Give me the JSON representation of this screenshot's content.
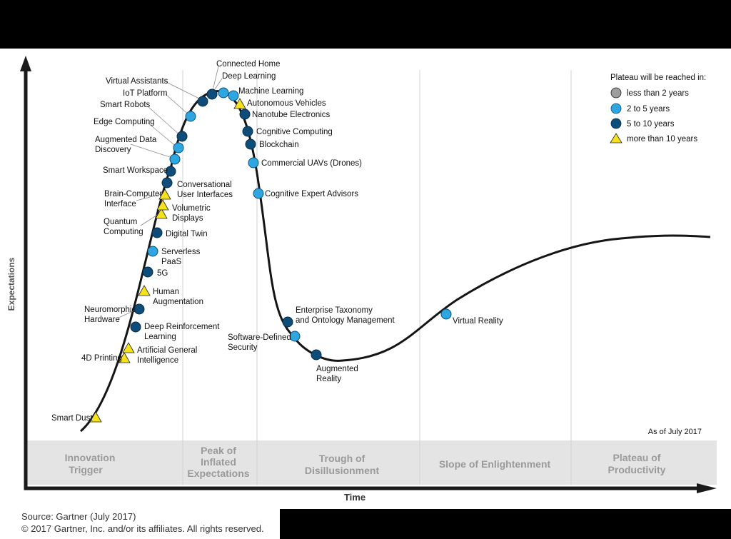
{
  "title": "",
  "axes": {
    "y_label": "Expectations",
    "x_label": "Time"
  },
  "as_of": "As of July 2017",
  "legend": {
    "title": "Plateau will be reached in:",
    "items": [
      {
        "label": "less than 2 years",
        "shape": "circle",
        "color": "#9e9e9e"
      },
      {
        "label": "2 to 5 years",
        "shape": "circle",
        "color": "#2ea6e0"
      },
      {
        "label": "5 to 10 years",
        "shape": "circle",
        "color": "#0e4d7a"
      },
      {
        "label": "more than 10 years",
        "shape": "triangle",
        "color": "#f5e21a"
      }
    ]
  },
  "phases": [
    {
      "lines": [
        "Innovation",
        "Trigger"
      ]
    },
    {
      "lines": [
        "Peak of",
        "Inflated",
        "Expectations"
      ]
    },
    {
      "lines": [
        "Trough of",
        "Disillusionment"
      ]
    },
    {
      "lines": [
        "Slope of Enlightenment"
      ]
    },
    {
      "lines": [
        "Plateau of",
        "Productivity"
      ]
    }
  ],
  "technologies": [
    {
      "name": "Smart Dust",
      "category": "more than 10 years"
    },
    {
      "name": "4D Printing",
      "category": "more than 10 years"
    },
    {
      "name": "Artificial General Intelligence",
      "category": "more than 10 years"
    },
    {
      "name": "Deep Reinforcement Learning",
      "category": "5 to 10 years"
    },
    {
      "name": "Neuromorphic Hardware",
      "category": "5 to 10 years"
    },
    {
      "name": "Human Augmentation",
      "category": "more than 10 years"
    },
    {
      "name": "5G",
      "category": "5 to 10 years"
    },
    {
      "name": "Serverless PaaS",
      "category": "2 to 5 years"
    },
    {
      "name": "Digital Twin",
      "category": "5 to 10 years"
    },
    {
      "name": "Quantum Computing",
      "category": "more than 10 years"
    },
    {
      "name": "Volumetric Displays",
      "category": "more than 10 years"
    },
    {
      "name": "Brain-Computer Interface",
      "category": "more than 10 years"
    },
    {
      "name": "Conversational User Interfaces",
      "category": "5 to 10 years"
    },
    {
      "name": "Smart Workspace",
      "category": "5 to 10 years"
    },
    {
      "name": "Augmented Data Discovery",
      "category": "2 to 5 years"
    },
    {
      "name": "Edge Computing",
      "category": "5 to 10 years"
    },
    {
      "name": "Smart Robots",
      "category": "2 to 5 years"
    },
    {
      "name": "IoT Platform",
      "category": "5 to 10 years"
    },
    {
      "name": "Virtual Assistants",
      "category": "5 to 10 years"
    },
    {
      "name": "Connected Home",
      "category": "5 to 10 years"
    },
    {
      "name": "Deep Learning",
      "category": "2 to 5 years"
    },
    {
      "name": "Machine Learning",
      "category": "2 to 5 years"
    },
    {
      "name": "Autonomous Vehicles",
      "category": "more than 10 years"
    },
    {
      "name": "Nanotube Electronics",
      "category": "5 to 10 years"
    },
    {
      "name": "Cognitive Computing",
      "category": "5 to 10 years"
    },
    {
      "name": "Blockchain",
      "category": "5 to 10 years"
    },
    {
      "name": "Commercial UAVs (Drones)",
      "category": "2 to 5 years"
    },
    {
      "name": "Cognitive Expert Advisors",
      "category": "2 to 5 years"
    },
    {
      "name": "Enterprise Taxonomy and Ontology Management",
      "category": "5 to 10 years"
    },
    {
      "name": "Software-Defined Security",
      "category": "2 to 5 years"
    },
    {
      "name": "Augmented Reality",
      "category": "5 to 10 years"
    },
    {
      "name": "Virtual Reality",
      "category": "2 to 5 years"
    }
  ],
  "source": {
    "line1": "Source: Gartner (July 2017)",
    "line2": "© 2017 Gartner, Inc. and/or its affiliates. All rights reserved."
  }
}
